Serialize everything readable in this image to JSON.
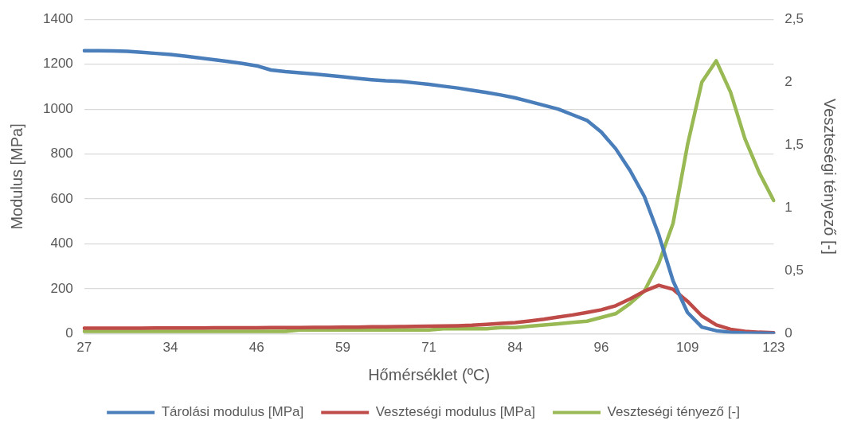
{
  "chart_data": {
    "type": "line",
    "xlabel": "Hőmérséklet (ºC)",
    "ylabel": "Modulus [MPa]",
    "y2label": "Veszteségi tényező [-]",
    "categories": [
      "27",
      null,
      null,
      null,
      null,
      null,
      "34",
      null,
      null,
      null,
      null,
      null,
      "46",
      null,
      null,
      null,
      null,
      null,
      "59",
      null,
      null,
      null,
      null,
      null,
      "71",
      null,
      null,
      null,
      null,
      null,
      "84",
      null,
      null,
      null,
      null,
      null,
      "96",
      null,
      null,
      null,
      null,
      null,
      "109",
      null,
      null,
      null,
      null,
      null,
      "123"
    ],
    "series": [
      {
        "name": "Tárolási modulus [MPa]",
        "color": "#4a7ebb",
        "values": [
          1260,
          1260,
          1259,
          1257,
          1253,
          1248,
          1243,
          1236,
          1228,
          1220,
          1212,
          1203,
          1193,
          1174,
          1167,
          1162,
          1156,
          1150,
          1144,
          1137,
          1131,
          1126,
          1124,
          1117,
          1110,
          1102,
          1094,
          1084,
          1074,
          1063,
          1050,
          1034,
          1017,
          1000,
          975,
          950,
          898,
          824,
          727,
          611,
          441,
          235,
          95,
          30,
          14,
          7,
          4,
          3,
          2
        ]
      },
      {
        "name": "Veszteségi modulus [MPa]",
        "color": "#be4b48",
        "values": [
          25,
          25,
          25,
          25,
          25,
          26,
          26,
          26,
          26,
          27,
          27,
          27,
          27,
          28,
          28,
          28,
          29,
          29,
          30,
          30,
          31,
          31,
          32,
          33,
          34,
          35,
          36,
          38,
          42,
          46,
          50,
          57,
          65,
          75,
          84,
          95,
          107,
          125,
          155,
          190,
          216,
          198,
          145,
          80,
          40,
          20,
          11,
          7,
          5
        ]
      },
      {
        "name": "Veszteségi tényező [-]",
        "color": "#98b954",
        "axis": "y2",
        "values": [
          0.02,
          0.02,
          0.02,
          0.02,
          0.02,
          0.02,
          0.02,
          0.02,
          0.02,
          0.02,
          0.02,
          0.02,
          0.02,
          0.02,
          0.02,
          0.03,
          0.03,
          0.03,
          0.03,
          0.03,
          0.03,
          0.03,
          0.03,
          0.03,
          0.03,
          0.04,
          0.04,
          0.04,
          0.04,
          0.05,
          0.05,
          0.06,
          0.07,
          0.08,
          0.09,
          0.1,
          0.13,
          0.16,
          0.24,
          0.34,
          0.56,
          0.88,
          1.5,
          2.0,
          2.17,
          1.92,
          1.55,
          1.28,
          1.06
        ]
      }
    ],
    "ylim": [
      0,
      1400
    ],
    "yticks": [
      0,
      200,
      400,
      600,
      800,
      1000,
      1200,
      1400
    ],
    "y2lim": [
      0,
      2.5
    ],
    "y2ticks": [
      0,
      {
        "value": 0.5,
        "label": "0,5"
      },
      1,
      {
        "value": 1.5,
        "label": "1,5"
      },
      2,
      {
        "value": 2.5,
        "label": "2,5"
      }
    ],
    "grid": "y",
    "legend": "bottom",
    "marker": "none",
    "line_style": "solid"
  }
}
